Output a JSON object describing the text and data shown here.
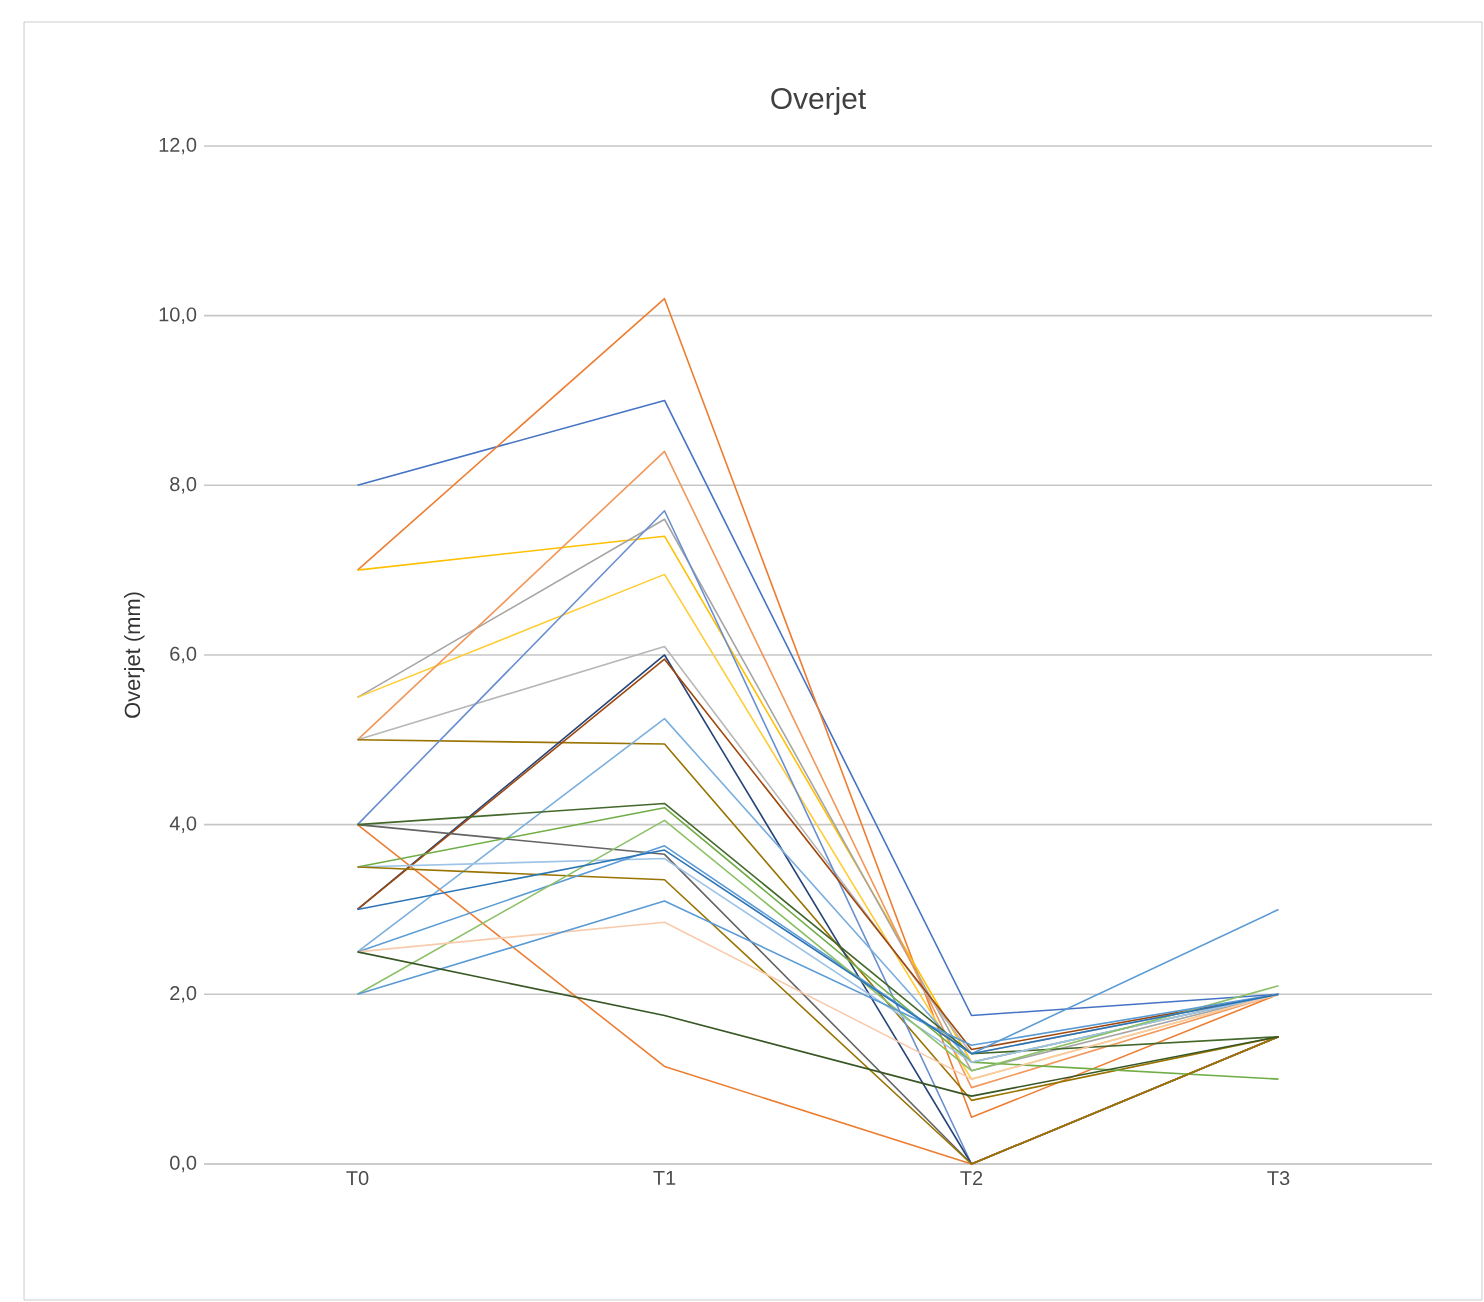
{
  "chart_data": {
    "type": "line",
    "title": "Overjet",
    "ylabel": "Overjet (mm)",
    "categories": [
      "T0",
      "T1",
      "T2",
      "T3"
    ],
    "ylim": [
      0,
      12
    ],
    "yticks": [
      {
        "value": 0,
        "label": "0,0"
      },
      {
        "value": 2,
        "label": "2,0"
      },
      {
        "value": 4,
        "label": "4,0"
      },
      {
        "value": 6,
        "label": "6,0"
      },
      {
        "value": 8,
        "label": "8,0"
      },
      {
        "value": 10,
        "label": "10,0"
      },
      {
        "value": 12,
        "label": "12,0"
      }
    ],
    "grid": "y",
    "legend": false,
    "marker": "none",
    "line_style": "solid",
    "series": [
      {
        "color": "#4472c4",
        "values": [
          8,
          9.0,
          1.75,
          2.0
        ]
      },
      {
        "color": "#ed7d31",
        "values": [
          7,
          10.2,
          0.55,
          2.0
        ]
      },
      {
        "color": "#ffc000",
        "values": [
          7,
          7.4,
          1.2,
          2.0
        ]
      },
      {
        "color": "#a5a5a5",
        "values": [
          5.5,
          7.6,
          1.1,
          2.0
        ]
      },
      {
        "color": "#ffcd33",
        "values": [
          5.5,
          6.95,
          1.0,
          2.0
        ]
      },
      {
        "color": "#f1975a",
        "values": [
          5,
          8.4,
          0.9,
          2.0
        ]
      },
      {
        "color": "#b7b7b7",
        "values": [
          5,
          6.1,
          1.3,
          2.0
        ]
      },
      {
        "color": "#997300",
        "values": [
          5,
          4.95,
          0.75,
          1.5
        ]
      },
      {
        "color": "#698ed0",
        "values": [
          4,
          7.7,
          0,
          1.5
        ]
      },
      {
        "color": "#264478",
        "values": [
          3,
          6.0,
          0,
          1.5
        ]
      },
      {
        "color": "#9e480e",
        "values": [
          3,
          5.95,
          1.35,
          2.0
        ]
      },
      {
        "color": "#7cafdd",
        "values": [
          2.5,
          5.25,
          1.2,
          2.0
        ]
      },
      {
        "color": "#636363",
        "values": [
          4,
          3.65,
          0,
          1.5
        ]
      },
      {
        "color": "#ed7d31",
        "values": [
          4,
          1.15,
          0,
          1.5
        ]
      },
      {
        "color": "#43682b",
        "values": [
          4,
          4.25,
          1.3,
          1.5
        ]
      },
      {
        "color": "#70ad47",
        "values": [
          3.5,
          4.2,
          1.2,
          1.0
        ]
      },
      {
        "color": "#9dc3e6",
        "values": [
          3.5,
          3.6,
          1.2,
          2.0
        ]
      },
      {
        "color": "#997300",
        "values": [
          3.5,
          3.35,
          0,
          1.5
        ]
      },
      {
        "color": "#5b9bd5",
        "values": [
          2.5,
          3.75,
          1.3,
          3.0
        ]
      },
      {
        "color": "#8cc168",
        "values": [
          2,
          4.05,
          1.1,
          2.1
        ]
      },
      {
        "color": "#f8cbad",
        "values": [
          2.5,
          2.85,
          1.0,
          2.0
        ]
      },
      {
        "color": "#5b9bd5",
        "values": [
          2,
          3.1,
          1.4,
          2.0
        ]
      },
      {
        "color": "#375623",
        "values": [
          2.5,
          1.75,
          0.8,
          1.5
        ]
      },
      {
        "color": "#2e75b6",
        "values": [
          3,
          3.7,
          1.3,
          2.0
        ]
      }
    ]
  }
}
